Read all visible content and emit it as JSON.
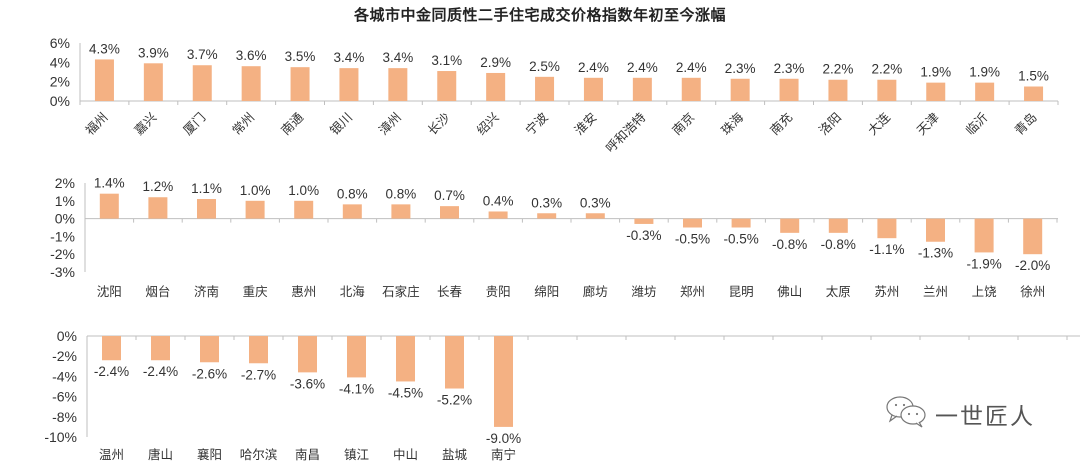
{
  "title": "各城市中金同质性二手住宅成交价格指数年初至今涨幅",
  "watermark": {
    "icon": "wechat-icon",
    "text": "一世匠人"
  },
  "colors": {
    "bar": "#F4B183",
    "axis": "#BFBFBF",
    "text": "#333333"
  },
  "chart_data": [
    {
      "type": "bar",
      "title": "各城市中金同质性二手住宅成交价格指数年初至今涨幅",
      "xlabel": "",
      "ylabel": "",
      "ylim": [
        0,
        6
      ],
      "yticks": [
        "6%",
        "4%",
        "2%",
        "0%"
      ],
      "rotated_labels": true,
      "categories": [
        "福州",
        "嘉兴",
        "厦门",
        "常州",
        "南通",
        "银川",
        "漳州",
        "长沙",
        "绍兴",
        "宁波",
        "淮安",
        "呼和浩特",
        "南京",
        "珠海",
        "南充",
        "洛阳",
        "大连",
        "天津",
        "临沂",
        "青岛"
      ],
      "values": [
        4.3,
        3.9,
        3.7,
        3.6,
        3.5,
        3.4,
        3.4,
        3.1,
        2.9,
        2.5,
        2.4,
        2.4,
        2.4,
        2.3,
        2.3,
        2.2,
        2.2,
        1.9,
        1.9,
        1.5
      ],
      "labels": [
        "4.3%",
        "3.9%",
        "3.7%",
        "3.6%",
        "3.5%",
        "3.4%",
        "3.4%",
        "3.1%",
        "2.9%",
        "2.5%",
        "2.4%",
        "2.4%",
        "2.4%",
        "2.3%",
        "2.3%",
        "2.2%",
        "2.2%",
        "1.9%",
        "1.9%",
        "1.5%"
      ]
    },
    {
      "type": "bar",
      "xlabel": "",
      "ylabel": "",
      "ylim": [
        -3,
        2
      ],
      "yticks": [
        "2%",
        "1%",
        "0%",
        "-1%",
        "-2%",
        "-3%"
      ],
      "rotated_labels": false,
      "categories": [
        "沈阳",
        "烟台",
        "济南",
        "重庆",
        "惠州",
        "北海",
        "石家庄",
        "长春",
        "贵阳",
        "绵阳",
        "廊坊",
        "潍坊",
        "郑州",
        "昆明",
        "佛山",
        "太原",
        "苏州",
        "兰州",
        "上饶",
        "徐州"
      ],
      "values": [
        1.4,
        1.2,
        1.1,
        1.0,
        1.0,
        0.8,
        0.8,
        0.7,
        0.4,
        0.3,
        0.3,
        -0.3,
        -0.5,
        -0.5,
        -0.8,
        -0.8,
        -1.1,
        -1.3,
        -1.9,
        -2.0
      ],
      "labels": [
        "1.4%",
        "1.2%",
        "1.1%",
        "1.0%",
        "1.0%",
        "0.8%",
        "0.8%",
        "0.7%",
        "0.4%",
        "0.3%",
        "0.3%",
        "-0.3%",
        "-0.5%",
        "-0.5%",
        "-0.8%",
        "-0.8%",
        "-1.1%",
        "-1.3%",
        "-1.9%",
        "-2.0%"
      ]
    },
    {
      "type": "bar",
      "xlabel": "",
      "ylabel": "",
      "ylim": [
        -10,
        0
      ],
      "yticks": [
        "0%",
        "-2%",
        "-4%",
        "-6%",
        "-8%",
        "-10%"
      ],
      "rotated_labels": false,
      "categories": [
        "温州",
        "唐山",
        "襄阳",
        "哈尔滨",
        "南昌",
        "镇江",
        "中山",
        "盐城",
        "南宁"
      ],
      "values": [
        -2.4,
        -2.4,
        -2.6,
        -2.7,
        -3.6,
        -4.1,
        -4.5,
        -5.2,
        -9.0
      ],
      "labels": [
        "-2.4%",
        "-2.4%",
        "-2.6%",
        "-2.7%",
        "-3.6%",
        "-4.1%",
        "-4.5%",
        "-5.2%",
        "-9.0%"
      ]
    }
  ]
}
